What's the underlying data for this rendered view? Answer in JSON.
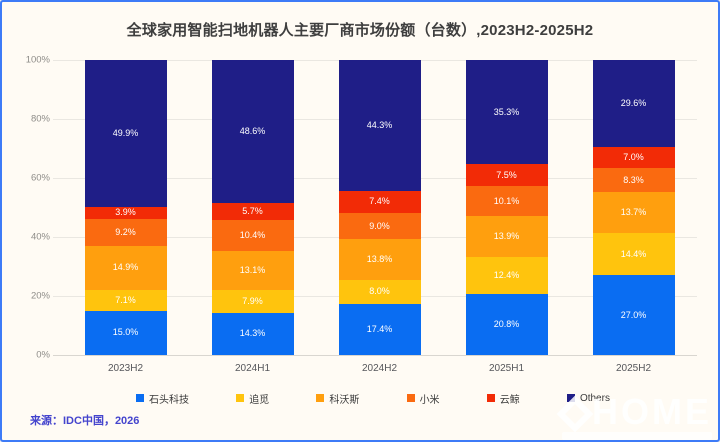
{
  "chart_data": {
    "type": "bar",
    "stacked": true,
    "title": "全球家用智能扫地机器人主要厂商市场份额（台数）,2023H2-2025H2",
    "categories": [
      "2023H2",
      "2024H1",
      "2024H2",
      "2025H1",
      "2025H2"
    ],
    "series": [
      {
        "name": "石头科技",
        "color": "#0a6df2",
        "values": [
          15.0,
          14.3,
          17.4,
          20.8,
          27.0
        ]
      },
      {
        "name": "追觅",
        "color": "#ffc40d",
        "values": [
          7.1,
          7.9,
          8.0,
          12.4,
          14.4
        ]
      },
      {
        "name": "科沃斯",
        "color": "#ff9f0e",
        "values": [
          14.9,
          13.1,
          13.8,
          13.9,
          13.7
        ]
      },
      {
        "name": "小米",
        "color": "#fa6a10",
        "values": [
          9.2,
          10.4,
          9.0,
          10.1,
          8.3
        ]
      },
      {
        "name": "云鲸",
        "color": "#f22b06",
        "values": [
          3.9,
          5.7,
          7.4,
          7.5,
          7.0
        ]
      },
      {
        "name": "Others",
        "color": "#1f1e87",
        "values": [
          49.9,
          48.6,
          44.3,
          35.3,
          29.6
        ]
      }
    ],
    "y_ticks": [
      "100%",
      "80%",
      "60%",
      "40%",
      "20%",
      "0%"
    ],
    "ylim": [
      0,
      100
    ],
    "grid": true,
    "legend_position": "bottom",
    "value_label_suffix": "%"
  },
  "source_note": "来源：IDC中国，2026",
  "watermark_text": "HOME",
  "colors": {
    "frame_border": "#3d7bf7",
    "background": "#fffbf4",
    "title_text": "#3e3e3e",
    "source_text": "#4444cd",
    "segment_label": "#ffffff"
  }
}
